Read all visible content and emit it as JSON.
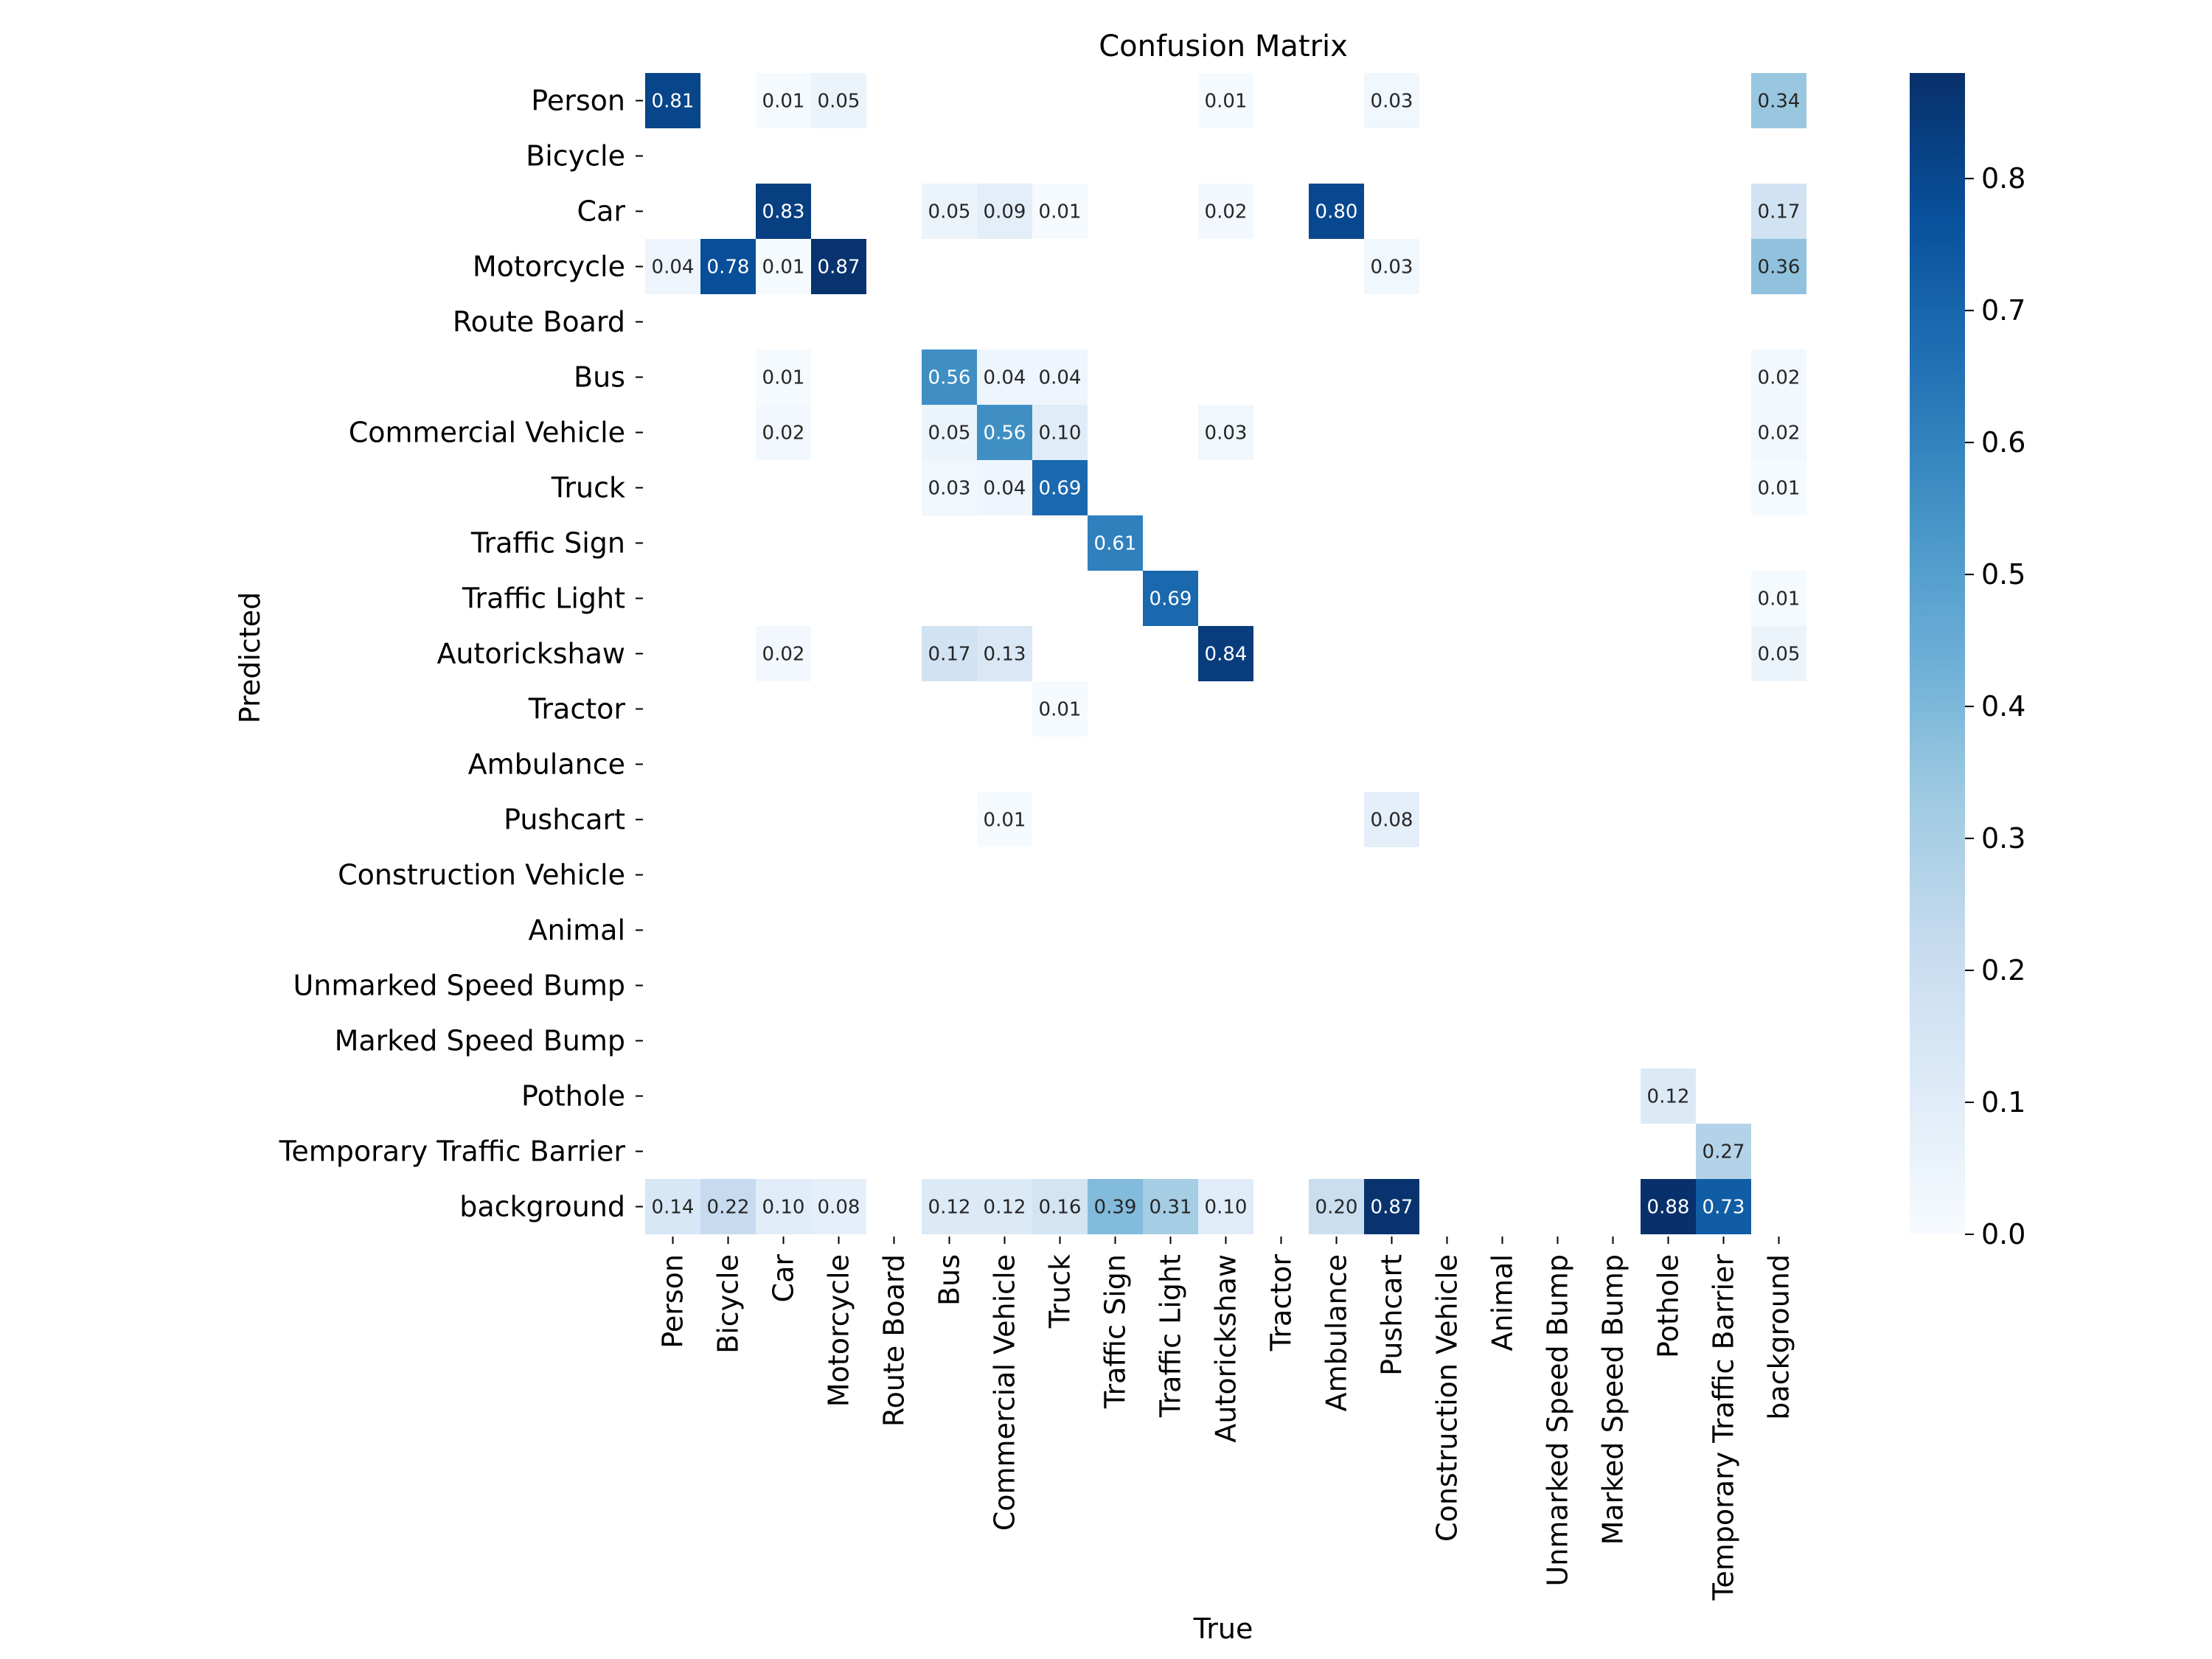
{
  "chart_data": {
    "type": "heatmap",
    "title": "Confusion Matrix",
    "xlabel": "True",
    "ylabel": "Predicted",
    "x_categories": [
      "Person",
      "Bicycle",
      "Car",
      "Motorcycle",
      "Route Board",
      "Bus",
      "Commercial Vehicle",
      "Truck",
      "Traffic Sign",
      "Traffic Light",
      "Autorickshaw",
      "Tractor",
      "Ambulance",
      "Pushcart",
      "Construction Vehicle",
      "Animal",
      "Unmarked Speed Bump",
      "Marked Speed Bump",
      "Pothole",
      "Temporary Traffic Barrier",
      "background"
    ],
    "y_categories": [
      "Person",
      "Bicycle",
      "Car",
      "Motorcycle",
      "Route Board",
      "Bus",
      "Commercial Vehicle",
      "Truck",
      "Traffic Sign",
      "Traffic Light",
      "Autorickshaw",
      "Tractor",
      "Ambulance",
      "Pushcart",
      "Construction Vehicle",
      "Animal",
      "Unmarked Speed Bump",
      "Marked Speed Bump",
      "Pothole",
      "Temporary Traffic Barrier",
      "background"
    ],
    "cells": [
      {
        "row": "Person",
        "col": "Person",
        "value": 0.81
      },
      {
        "row": "Person",
        "col": "Car",
        "value": 0.01
      },
      {
        "row": "Person",
        "col": "Motorcycle",
        "value": 0.05
      },
      {
        "row": "Person",
        "col": "Autorickshaw",
        "value": 0.01
      },
      {
        "row": "Person",
        "col": "Pushcart",
        "value": 0.03
      },
      {
        "row": "Person",
        "col": "background",
        "value": 0.34
      },
      {
        "row": "Car",
        "col": "Car",
        "value": 0.83
      },
      {
        "row": "Car",
        "col": "Bus",
        "value": 0.05
      },
      {
        "row": "Car",
        "col": "Commercial Vehicle",
        "value": 0.09
      },
      {
        "row": "Car",
        "col": "Truck",
        "value": 0.01
      },
      {
        "row": "Car",
        "col": "Autorickshaw",
        "value": 0.02
      },
      {
        "row": "Car",
        "col": "Ambulance",
        "value": 0.8
      },
      {
        "row": "Car",
        "col": "background",
        "value": 0.17
      },
      {
        "row": "Motorcycle",
        "col": "Person",
        "value": 0.04
      },
      {
        "row": "Motorcycle",
        "col": "Bicycle",
        "value": 0.78
      },
      {
        "row": "Motorcycle",
        "col": "Car",
        "value": 0.01
      },
      {
        "row": "Motorcycle",
        "col": "Motorcycle",
        "value": 0.87
      },
      {
        "row": "Motorcycle",
        "col": "Pushcart",
        "value": 0.03
      },
      {
        "row": "Motorcycle",
        "col": "background",
        "value": 0.36
      },
      {
        "row": "Bus",
        "col": "Car",
        "value": 0.01
      },
      {
        "row": "Bus",
        "col": "Bus",
        "value": 0.56
      },
      {
        "row": "Bus",
        "col": "Commercial Vehicle",
        "value": 0.04
      },
      {
        "row": "Bus",
        "col": "Truck",
        "value": 0.04
      },
      {
        "row": "Bus",
        "col": "background",
        "value": 0.02
      },
      {
        "row": "Commercial Vehicle",
        "col": "Car",
        "value": 0.02
      },
      {
        "row": "Commercial Vehicle",
        "col": "Bus",
        "value": 0.05
      },
      {
        "row": "Commercial Vehicle",
        "col": "Commercial Vehicle",
        "value": 0.56
      },
      {
        "row": "Commercial Vehicle",
        "col": "Truck",
        "value": 0.1
      },
      {
        "row": "Commercial Vehicle",
        "col": "Autorickshaw",
        "value": 0.03
      },
      {
        "row": "Commercial Vehicle",
        "col": "background",
        "value": 0.02
      },
      {
        "row": "Truck",
        "col": "Bus",
        "value": 0.03
      },
      {
        "row": "Truck",
        "col": "Commercial Vehicle",
        "value": 0.04
      },
      {
        "row": "Truck",
        "col": "Truck",
        "value": 0.69
      },
      {
        "row": "Truck",
        "col": "background",
        "value": 0.01
      },
      {
        "row": "Traffic Sign",
        "col": "Traffic Sign",
        "value": 0.61
      },
      {
        "row": "Traffic Light",
        "col": "Traffic Light",
        "value": 0.69
      },
      {
        "row": "Traffic Light",
        "col": "background",
        "value": 0.01
      },
      {
        "row": "Autorickshaw",
        "col": "Car",
        "value": 0.02
      },
      {
        "row": "Autorickshaw",
        "col": "Bus",
        "value": 0.17
      },
      {
        "row": "Autorickshaw",
        "col": "Commercial Vehicle",
        "value": 0.13
      },
      {
        "row": "Autorickshaw",
        "col": "Autorickshaw",
        "value": 0.84
      },
      {
        "row": "Autorickshaw",
        "col": "background",
        "value": 0.05
      },
      {
        "row": "Tractor",
        "col": "Truck",
        "value": 0.01
      },
      {
        "row": "Pushcart",
        "col": "Commercial Vehicle",
        "value": 0.01
      },
      {
        "row": "Pushcart",
        "col": "Pushcart",
        "value": 0.08
      },
      {
        "row": "Pothole",
        "col": "Pothole",
        "value": 0.12
      },
      {
        "row": "Temporary Traffic Barrier",
        "col": "Temporary Traffic Barrier",
        "value": 0.27
      },
      {
        "row": "background",
        "col": "Person",
        "value": 0.14
      },
      {
        "row": "background",
        "col": "Bicycle",
        "value": 0.22
      },
      {
        "row": "background",
        "col": "Car",
        "value": 0.1
      },
      {
        "row": "background",
        "col": "Motorcycle",
        "value": 0.08
      },
      {
        "row": "background",
        "col": "Bus",
        "value": 0.12
      },
      {
        "row": "background",
        "col": "Commercial Vehicle",
        "value": 0.12
      },
      {
        "row": "background",
        "col": "Truck",
        "value": 0.16
      },
      {
        "row": "background",
        "col": "Traffic Sign",
        "value": 0.39
      },
      {
        "row": "background",
        "col": "Traffic Light",
        "value": 0.31
      },
      {
        "row": "background",
        "col": "Autorickshaw",
        "value": 0.1
      },
      {
        "row": "background",
        "col": "Ambulance",
        "value": 0.2
      },
      {
        "row": "background",
        "col": "Pushcart",
        "value": 0.87
      },
      {
        "row": "background",
        "col": "Pothole",
        "value": 0.88
      },
      {
        "row": "background",
        "col": "Temporary Traffic Barrier",
        "value": 0.73
      }
    ],
    "colorbar": {
      "range": [
        0.0,
        0.88
      ],
      "ticks": [
        "0.0",
        "0.1",
        "0.2",
        "0.3",
        "0.4",
        "0.5",
        "0.6",
        "0.7",
        "0.8"
      ],
      "colormap": "Blues"
    },
    "grid": false,
    "legend": "colorbar-right"
  }
}
